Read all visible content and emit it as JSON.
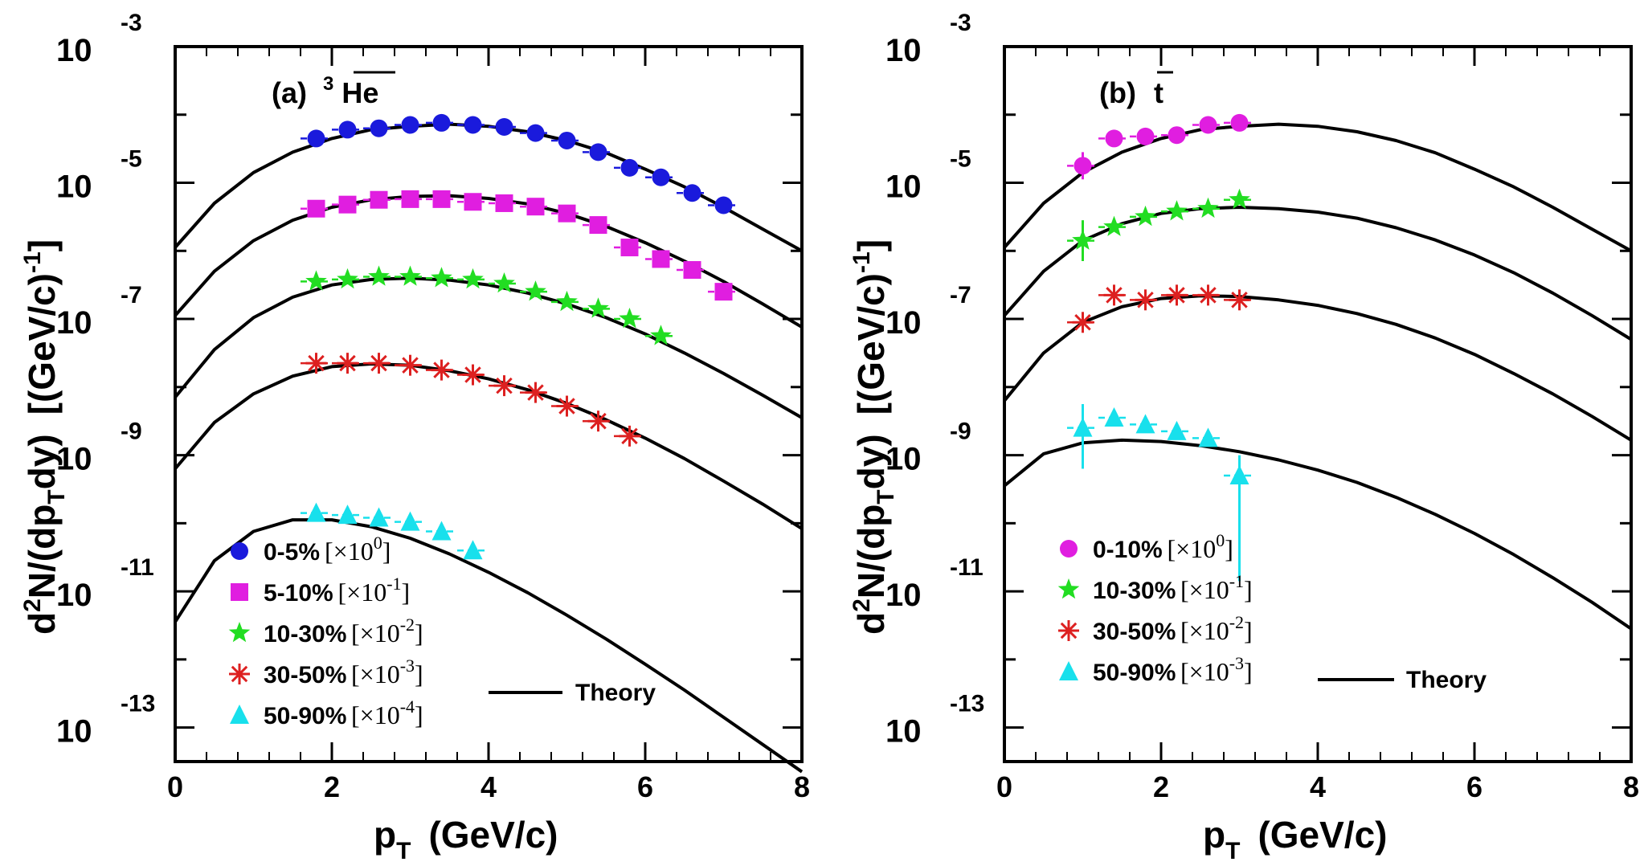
{
  "chart_data": [
    {
      "type": "scatter",
      "panel": "(a)",
      "title": "(a)",
      "title_particle_super": "3",
      "title_particle": "He",
      "xlabel": "p",
      "xlabel_sub": "T",
      "xlabel_unit": "(GeV/c)",
      "ylabel_d": "d",
      "ylabel_sup": "2",
      "ylabel_mid": "N/(dp",
      "ylabel_sub": "T",
      "ylabel_end": "dy)",
      "ylabel_units": "[(GeV/c)",
      "ylabel_units_sup": "-1",
      "ylabel_close": "]",
      "xlim": [
        0,
        8
      ],
      "ylim_log10": [
        -13.5,
        -3
      ],
      "x_ticks": [
        "0",
        "2",
        "4",
        "6",
        "8"
      ],
      "y_ticks": [
        {
          "base": "10",
          "exp": "-3"
        },
        {
          "base": "10",
          "exp": "-5"
        },
        {
          "base": "10",
          "exp": "-7"
        },
        {
          "base": "10",
          "exp": "-9"
        },
        {
          "base": "10",
          "exp": "-11"
        },
        {
          "base": "10",
          "exp": "-13"
        }
      ],
      "theory_label": "Theory",
      "series": [
        {
          "name": "0-5%",
          "scale_base": "×10",
          "scale_exp": "0",
          "marker": "circle",
          "color": "#1a1adc",
          "x": [
            1.8,
            2.2,
            2.6,
            3.0,
            3.4,
            3.8,
            4.2,
            4.6,
            5.0,
            5.4,
            5.8,
            6.2,
            6.6,
            7.0
          ],
          "log10_y": [
            -4.35,
            -4.22,
            -4.2,
            -4.15,
            -4.12,
            -4.15,
            -4.18,
            -4.27,
            -4.38,
            -4.55,
            -4.78,
            -4.92,
            -5.15,
            -5.33
          ],
          "theory_log10": [
            -5.95,
            -5.3,
            -4.85,
            -4.55,
            -4.35,
            -4.22,
            -4.17,
            -4.14,
            -4.17,
            -4.25,
            -4.38,
            -4.56,
            -4.8,
            -5.06,
            -5.36,
            -5.68,
            -6.0
          ]
        },
        {
          "name": "5-10%",
          "scale_base": "×10",
          "scale_exp": "-1",
          "marker": "square",
          "color": "#e01ee0",
          "x": [
            1.8,
            2.2,
            2.6,
            3.0,
            3.4,
            3.8,
            4.2,
            4.6,
            5.0,
            5.4,
            5.8,
            6.2,
            6.6,
            7.0
          ],
          "log10_y": [
            -5.38,
            -5.32,
            -5.25,
            -5.24,
            -5.24,
            -5.28,
            -5.3,
            -5.35,
            -5.45,
            -5.62,
            -5.95,
            -6.12,
            -6.28,
            -6.6
          ],
          "theory_log10": [
            -6.95,
            -6.3,
            -5.85,
            -5.55,
            -5.36,
            -5.25,
            -5.2,
            -5.19,
            -5.23,
            -5.31,
            -5.45,
            -5.64,
            -5.88,
            -6.15,
            -6.45,
            -6.78,
            -7.12
          ]
        },
        {
          "name": "10-30%",
          "scale_base": "×10",
          "scale_exp": "-2",
          "marker": "star",
          "color": "#22dd22",
          "x": [
            1.8,
            2.2,
            2.6,
            3.0,
            3.4,
            3.8,
            4.2,
            4.6,
            5.0,
            5.4,
            5.8,
            6.2
          ],
          "log10_y": [
            -6.45,
            -6.42,
            -6.38,
            -6.38,
            -6.4,
            -6.42,
            -6.48,
            -6.6,
            -6.75,
            -6.85,
            -7.0,
            -7.25
          ],
          "theory_log10": [
            -8.15,
            -7.45,
            -6.98,
            -6.68,
            -6.5,
            -6.42,
            -6.4,
            -6.43,
            -6.5,
            -6.62,
            -6.78,
            -6.98,
            -7.22,
            -7.5,
            -7.8,
            -8.12,
            -8.45
          ]
        },
        {
          "name": "30-50%",
          "scale_base": "×10",
          "scale_exp": "-3",
          "marker": "asterisk",
          "color": "#dd2020",
          "x": [
            1.8,
            2.2,
            2.6,
            3.0,
            3.4,
            3.8,
            4.2,
            4.6,
            5.0,
            5.4,
            5.8
          ],
          "log10_y": [
            -7.65,
            -7.65,
            -7.65,
            -7.68,
            -7.75,
            -7.82,
            -7.98,
            -8.08,
            -8.28,
            -8.5,
            -8.72
          ],
          "theory_log10": [
            -9.2,
            -8.52,
            -8.1,
            -7.84,
            -7.7,
            -7.66,
            -7.68,
            -7.76,
            -7.88,
            -8.04,
            -8.24,
            -8.48,
            -8.75,
            -9.05,
            -9.38,
            -9.72,
            -10.08
          ]
        },
        {
          "name": "50-90%",
          "scale_base": "×10",
          "scale_exp": "-4",
          "marker": "triangle",
          "color": "#18e0ec",
          "x": [
            1.8,
            2.2,
            2.6,
            3.0,
            3.4,
            3.8
          ],
          "log10_y": [
            -9.85,
            -9.88,
            -9.92,
            -9.98,
            -10.12,
            -10.4
          ],
          "theory_log10": [
            -11.45,
            -10.55,
            -10.12,
            -9.95,
            -9.95,
            -10.05,
            -10.22,
            -10.45,
            -10.72,
            -11.02,
            -11.35,
            -11.7,
            -12.07,
            -12.45,
            -12.85,
            -13.25,
            -13.65
          ]
        }
      ]
    },
    {
      "type": "scatter",
      "panel": "(b)",
      "title": "(b)",
      "title_particle": "t",
      "xlabel": "p",
      "xlabel_sub": "T",
      "xlabel_unit": "(GeV/c)",
      "ylabel_d": "d",
      "ylabel_sup": "2",
      "ylabel_mid": "N/(dp",
      "ylabel_sub": "T",
      "ylabel_end": "dy)",
      "ylabel_units": "[(GeV/c)",
      "ylabel_units_sup": "-1",
      "ylabel_close": "]",
      "xlim": [
        0,
        8
      ],
      "ylim_log10": [
        -13.5,
        -3
      ],
      "x_ticks": [
        "0",
        "2",
        "4",
        "6",
        "8"
      ],
      "y_ticks": [
        {
          "base": "10",
          "exp": "-3"
        },
        {
          "base": "10",
          "exp": "-5"
        },
        {
          "base": "10",
          "exp": "-7"
        },
        {
          "base": "10",
          "exp": "-9"
        },
        {
          "base": "10",
          "exp": "-11"
        },
        {
          "base": "10",
          "exp": "-13"
        }
      ],
      "theory_label": "Theory",
      "series": [
        {
          "name": "0-10%",
          "scale_base": "×10",
          "scale_exp": "0",
          "marker": "circle",
          "color": "#e01ee0",
          "x": [
            1.0,
            1.4,
            1.8,
            2.2,
            2.6,
            3.0
          ],
          "log10_y": [
            -4.75,
            -4.35,
            -4.32,
            -4.3,
            -4.15,
            -4.12
          ],
          "theory_log10": [
            -5.95,
            -5.3,
            -4.85,
            -4.55,
            -4.35,
            -4.22,
            -4.17,
            -4.14,
            -4.17,
            -4.25,
            -4.38,
            -4.56,
            -4.8,
            -5.06,
            -5.36,
            -5.68,
            -6.0
          ]
        },
        {
          "name": "10-30%",
          "scale_base": "×10",
          "scale_exp": "-1",
          "marker": "star",
          "color": "#22dd22",
          "x": [
            1.0,
            1.4,
            1.8,
            2.2,
            2.6,
            3.0
          ],
          "log10_y": [
            -5.85,
            -5.65,
            -5.5,
            -5.42,
            -5.38,
            -5.25
          ],
          "theory_log10": [
            -6.95,
            -6.3,
            -5.85,
            -5.6,
            -5.45,
            -5.38,
            -5.36,
            -5.38,
            -5.43,
            -5.52,
            -5.66,
            -5.84,
            -6.06,
            -6.32,
            -6.62,
            -6.95,
            -7.3
          ]
        },
        {
          "name": "30-50%",
          "scale_base": "×10",
          "scale_exp": "-2",
          "marker": "asterisk",
          "color": "#dd2020",
          "x": [
            1.0,
            1.4,
            1.8,
            2.2,
            2.6,
            3.0
          ],
          "log10_y": [
            -7.05,
            -6.65,
            -6.72,
            -6.65,
            -6.65,
            -6.72
          ],
          "theory_log10": [
            -8.2,
            -7.5,
            -7.05,
            -6.82,
            -6.7,
            -6.66,
            -6.67,
            -6.72,
            -6.8,
            -6.92,
            -7.08,
            -7.28,
            -7.52,
            -7.8,
            -8.1,
            -8.43,
            -8.78
          ]
        },
        {
          "name": "50-90%",
          "scale_base": "×10",
          "scale_exp": "-3",
          "marker": "triangle",
          "color": "#18e0ec",
          "x": [
            1.0,
            1.4,
            1.8,
            2.2,
            2.6,
            3.0
          ],
          "log10_y": [
            -8.6,
            -8.45,
            -8.55,
            -8.65,
            -8.75,
            -9.3
          ],
          "theory_log10": [
            -9.45,
            -8.98,
            -8.82,
            -8.78,
            -8.8,
            -8.86,
            -8.95,
            -9.07,
            -9.22,
            -9.4,
            -9.62,
            -9.87,
            -10.15,
            -10.46,
            -10.8,
            -11.16,
            -11.55
          ]
        }
      ]
    }
  ]
}
